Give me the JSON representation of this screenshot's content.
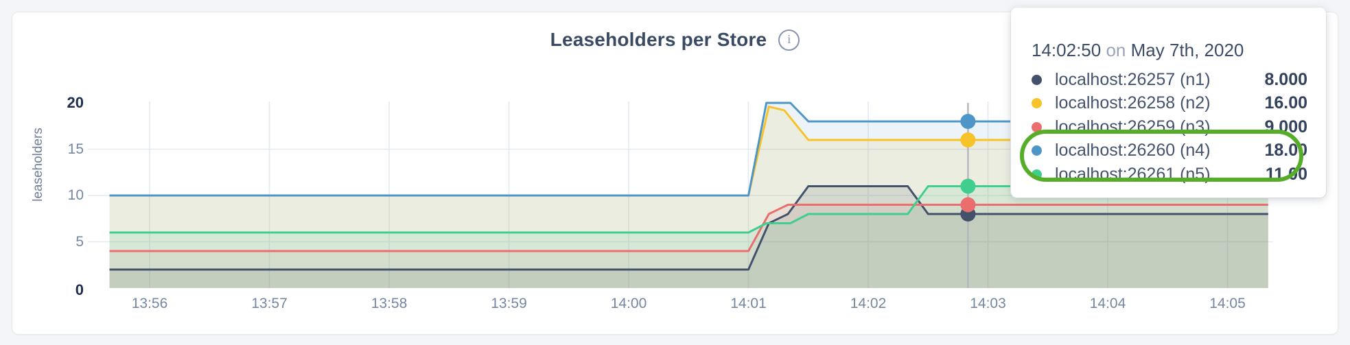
{
  "chart": {
    "title": "Leaseholders per Store",
    "info_icon_glyph": "i",
    "y_axis_label": "leaseholders",
    "tooltip": {
      "time": "14:02:50",
      "on_word": "on",
      "date": "May 7th, 2020"
    }
  },
  "chart_data": {
    "type": "line",
    "title": "Leaseholders per Store",
    "ylabel": "leaseholders",
    "ylim": [
      0,
      20
    ],
    "y_ticks": [
      {
        "value": 0,
        "label": "0",
        "bold": true
      },
      {
        "value": 5,
        "label": "5",
        "bold": false
      },
      {
        "value": 10,
        "label": "10",
        "bold": false
      },
      {
        "value": 15,
        "label": "15",
        "bold": false
      },
      {
        "value": 20,
        "label": "20",
        "bold": true
      }
    ],
    "x_ticks": [
      "13:56",
      "13:57",
      "13:58",
      "13:59",
      "14:00",
      "14:01",
      "14:02",
      "14:03",
      "14:04",
      "14:05"
    ],
    "x_unit": "minutes after 13:56",
    "x_range_minutes": [
      -0.335,
      9.34
    ],
    "grid": true,
    "legend_position": "tooltip-top-right",
    "hover_time_minutes": 6.8333,
    "hover_time_label": "14:02:50",
    "series": [
      {
        "name": "localhost:26257 (n1)",
        "color": "#44516a",
        "fill_opacity": 0.15,
        "hover_value": 8,
        "hover_value_label": "8.000",
        "points": [
          [
            -0.335,
            2
          ],
          [
            5.0,
            2
          ],
          [
            5.17,
            7
          ],
          [
            5.33,
            8
          ],
          [
            5.5,
            11
          ],
          [
            6.33,
            11
          ],
          [
            6.5,
            8
          ],
          [
            9.34,
            8
          ]
        ]
      },
      {
        "name": "localhost:26258 (n2)",
        "color": "#f6c32b",
        "fill_opacity": 0.12,
        "hover_value": 16,
        "hover_value_label": "16.00",
        "points": [
          [
            -0.335,
            10
          ],
          [
            5.0,
            10
          ],
          [
            5.17,
            19.6
          ],
          [
            5.3,
            19.2
          ],
          [
            5.5,
            16
          ],
          [
            9.34,
            16
          ]
        ]
      },
      {
        "name": "localhost:26259 (n3)",
        "color": "#ea6e6e",
        "fill_opacity": 0.1,
        "hover_value": 9,
        "hover_value_label": "9.000",
        "points": [
          [
            -0.335,
            4
          ],
          [
            5.0,
            4
          ],
          [
            5.17,
            8
          ],
          [
            5.33,
            9
          ],
          [
            9.34,
            9
          ]
        ]
      },
      {
        "name": "localhost:26260 (n4)",
        "color": "#4f96c8",
        "fill_opacity": 0.1,
        "hover_value": 18,
        "hover_value_label": "18.00",
        "points": [
          [
            -0.335,
            10
          ],
          [
            5.0,
            10
          ],
          [
            5.15,
            20
          ],
          [
            5.35,
            20
          ],
          [
            5.5,
            18
          ],
          [
            9.34,
            18
          ]
        ]
      },
      {
        "name": "localhost:26261 (n5)",
        "color": "#40ce8e",
        "fill_opacity": 0.12,
        "hover_value": 11,
        "hover_value_label": "11.00",
        "points": [
          [
            -0.335,
            6
          ],
          [
            5.0,
            6
          ],
          [
            5.15,
            7
          ],
          [
            5.35,
            7
          ],
          [
            5.5,
            8
          ],
          [
            6.33,
            8
          ],
          [
            6.5,
            11
          ],
          [
            9.34,
            11
          ]
        ]
      }
    ],
    "annotation": {
      "shape": "ellipse",
      "color": "#56ae28",
      "highlights": [
        "localhost:26260 (n4)",
        "localhost:26261 (n5)"
      ]
    },
    "colors": {
      "grid": "#e4eaf1",
      "hover_line": "#b4b7bb",
      "tick_text": "#7487a2",
      "tick_text_bold": "#1d2d4e",
      "title_text": "#3b4a63"
    }
  }
}
